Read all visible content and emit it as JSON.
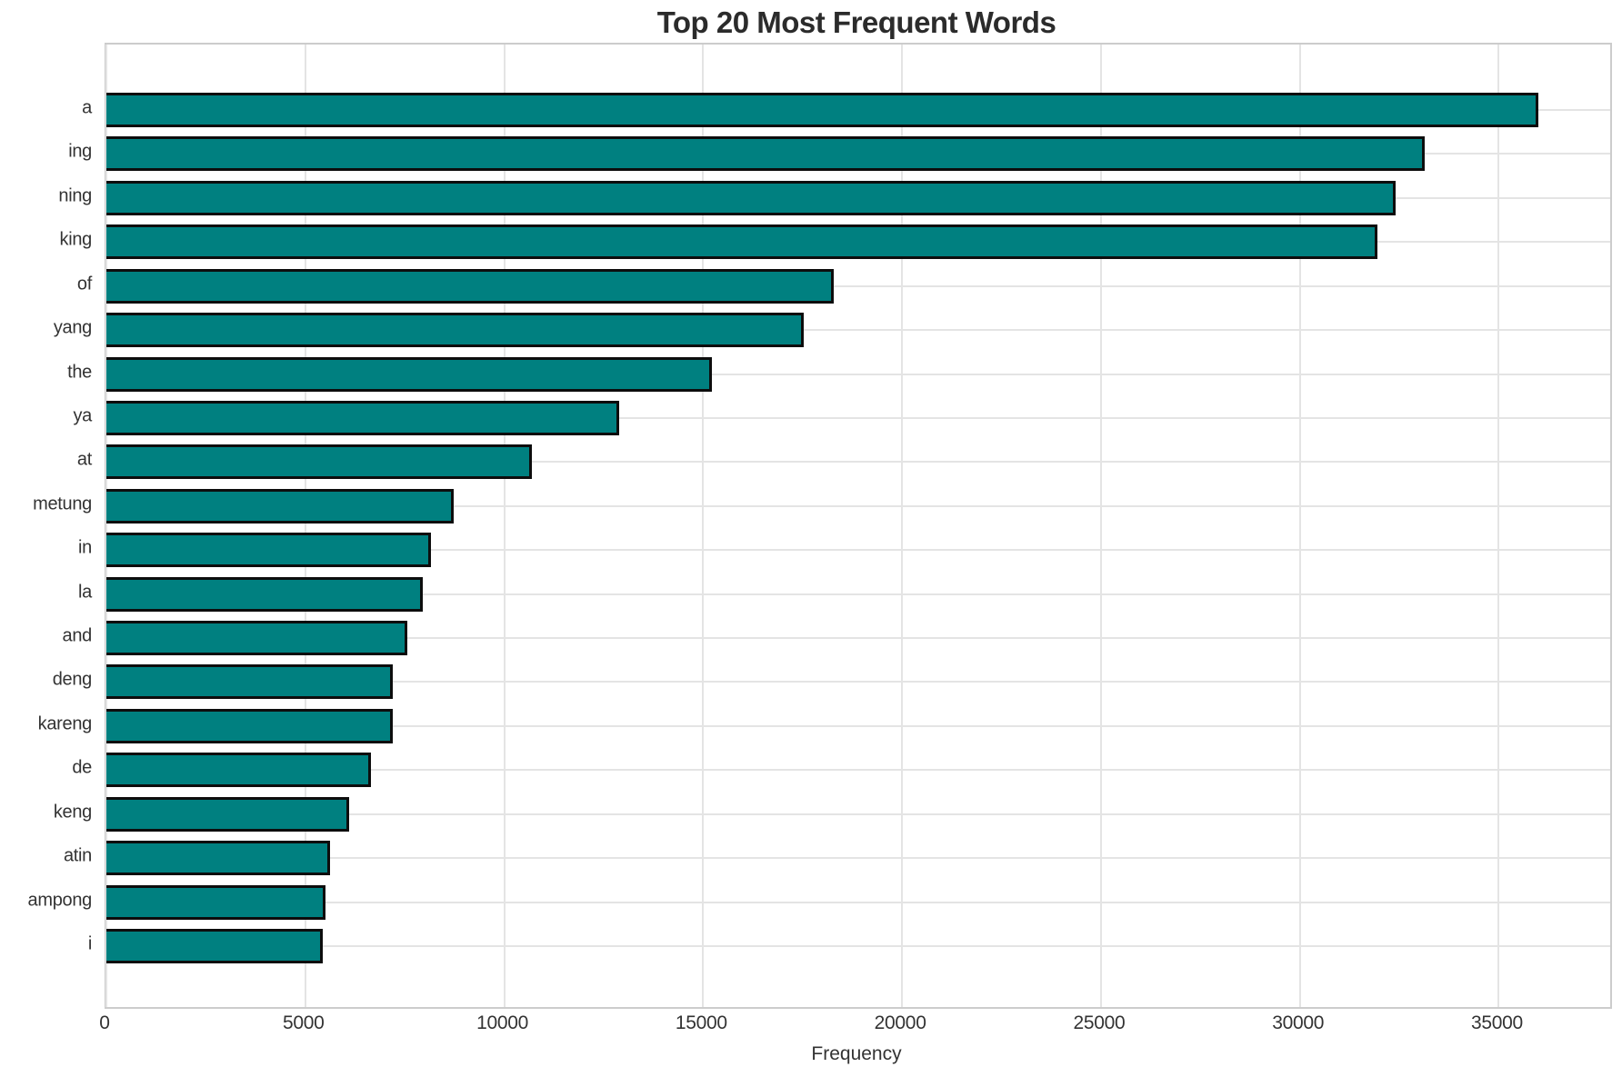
{
  "chart_data": {
    "type": "bar",
    "orientation": "horizontal",
    "title": "Top 20 Most Frequent Words",
    "xlabel": "Frequency",
    "ylabel": "",
    "categories": [
      "a",
      "ing",
      "ning",
      "king",
      "of",
      "yang",
      "the",
      "ya",
      "at",
      "metung",
      "in",
      "la",
      "and",
      "deng",
      "kareng",
      "de",
      "keng",
      "atin",
      "ampong",
      "i"
    ],
    "values": [
      36000,
      33130,
      32400,
      31950,
      18290,
      17530,
      15230,
      12900,
      10690,
      8720,
      8170,
      7950,
      7560,
      7210,
      7190,
      6640,
      6100,
      5620,
      5500,
      5430
    ],
    "xticks": [
      0,
      5000,
      10000,
      15000,
      20000,
      25000,
      30000,
      35000
    ],
    "xlim": [
      0,
      37800
    ],
    "grid": true,
    "legend": "none",
    "bar_color": "#008080",
    "bar_edge_color": "#0d0d0d",
    "gridline_color": "#e4e4e4",
    "spine_color": "#cccccc",
    "text_color": "#333333",
    "title_color": "#2b2b2b",
    "background_color": "#ffffff"
  }
}
